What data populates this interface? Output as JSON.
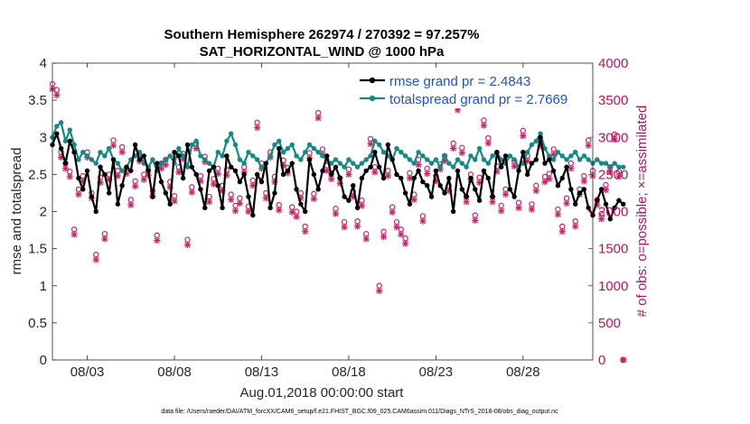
{
  "chart_data": {
    "type": "line",
    "title": "Southern Hemisphere 262974 / 270392 = 97.257%",
    "subtitle": "SAT_HORIZONTAL_WIND @ 1000 hPa",
    "xlabel": "Aug.01,2018 00:00:00 start",
    "ylabel_left": "rmse and totalspread",
    "ylabel_right": "# of obs: o=possible; ×=assimilated",
    "xlim": [
      1,
      32
    ],
    "ylim_left": [
      0,
      4
    ],
    "ylim_right": [
      0,
      4000
    ],
    "x_ticks": [
      3,
      8,
      13,
      18,
      23,
      28
    ],
    "x_tick_labels": [
      "08/03",
      "08/08",
      "08/13",
      "08/18",
      "08/23",
      "08/28"
    ],
    "y_ticks_left": [
      "0",
      "0.5",
      "1",
      "1.5",
      "2",
      "2.5",
      "3",
      "3.5",
      "4"
    ],
    "y_ticks_right": [
      "0",
      "500",
      "1000",
      "1500",
      "2000",
      "2500",
      "3000",
      "3500",
      "4000"
    ],
    "legend": [
      {
        "label": "rmse grand pr = 2.4843",
        "color": "#000000"
      },
      {
        "label": "totalspread grand pr = 2.7669",
        "color": "#138a86"
      }
    ],
    "footer": "data file: /Users/raeder/DAI/ATM_forcXX/CAM6_setup/f.e21.FHIST_BGC.f09_025.CAM6assim.011/Diags_NTrS_2018-08/obs_diag_output.nc",
    "colors": {
      "rmse": "#000000",
      "spread": "#138a86",
      "obs": "#cc1f65"
    },
    "series": {
      "rmse": [
        2.9,
        3.05,
        2.85,
        2.65,
        2.95,
        2.8,
        2.45,
        2.3,
        2.55,
        2.2,
        2.0,
        2.6,
        2.5,
        2.25,
        2.7,
        2.1,
        2.35,
        2.6,
        2.55,
        2.9,
        2.7,
        2.75,
        2.55,
        2.2,
        2.65,
        2.4,
        2.25,
        2.1,
        2.8,
        2.75,
        2.45,
        2.9,
        2.6,
        2.5,
        2.3,
        2.05,
        2.55,
        2.6,
        2.35,
        2.05,
        2.75,
        2.6,
        2.55,
        2.4,
        2.5,
        2.2,
        1.95,
        2.5,
        2.4,
        2.65,
        2.05,
        2.25,
        2.85,
        2.5,
        2.55,
        2.65,
        2.3,
        2.1,
        2.0,
        2.7,
        2.5,
        2.3,
        2.55,
        2.75,
        2.5,
        2.6,
        2.45,
        2.2,
        2.15,
        2.35,
        2.05,
        2.45,
        2.55,
        2.6,
        2.8,
        2.6,
        2.45,
        2.9,
        2.7,
        2.5,
        2.45,
        2.25,
        2.1,
        2.45,
        2.55,
        2.4,
        2.35,
        2.2,
        2.55,
        2.35,
        2.25,
        2.45,
        2.0,
        2.55,
        2.3,
        2.2,
        2.45,
        2.3,
        2.15,
        2.55,
        2.45,
        2.2,
        2.8,
        2.6,
        2.75,
        2.3,
        2.2,
        2.55,
        2.8,
        2.5,
        2.65,
        2.7,
        3.0,
        2.65,
        2.7,
        2.55,
        2.35,
        2.45,
        2.6,
        2.3,
        2.1,
        2.25,
        2.3,
        2.05,
        1.95,
        2.15,
        2.3,
        2.1,
        1.9,
        2.05,
        2.15,
        2.1
      ],
      "totalspread": [
        3.0,
        3.15,
        3.2,
        2.95,
        3.1,
        2.9,
        2.7,
        2.8,
        2.75,
        2.7,
        2.65,
        2.8,
        2.75,
        2.85,
        2.7,
        2.65,
        2.55,
        2.6,
        2.7,
        2.75,
        2.8,
        2.65,
        2.6,
        2.7,
        2.55,
        2.65,
        2.7,
        2.75,
        2.65,
        2.85,
        2.75,
        2.6,
        2.9,
        2.95,
        2.75,
        2.7,
        2.65,
        2.6,
        2.8,
        2.75,
        2.95,
        3.05,
        2.9,
        2.7,
        2.65,
        2.8,
        2.75,
        2.7,
        2.6,
        2.65,
        2.75,
        2.9,
        2.95,
        2.8,
        2.85,
        2.9,
        2.75,
        2.7,
        2.8,
        2.9,
        2.85,
        2.8,
        2.75,
        2.7,
        2.65,
        2.7,
        2.65,
        2.6,
        2.7,
        2.65,
        2.6,
        2.65,
        2.7,
        2.75,
        2.95,
        2.9,
        2.8,
        2.75,
        2.7,
        2.85,
        2.8,
        2.75,
        2.7,
        2.65,
        2.8,
        2.75,
        2.7,
        2.65,
        2.7,
        2.6,
        2.75,
        2.65,
        2.6,
        2.7,
        2.65,
        2.6,
        2.75,
        2.7,
        2.85,
        2.7,
        2.65,
        2.75,
        2.8,
        2.7,
        2.65,
        2.75,
        2.7,
        2.6,
        2.65,
        2.8,
        2.9,
        2.95,
        3.05,
        2.85,
        2.75,
        2.7,
        2.8,
        2.75,
        2.7,
        2.75,
        2.8,
        2.7,
        2.75,
        2.7,
        2.65,
        2.7,
        2.65,
        2.65,
        2.6,
        2.65,
        2.6,
        2.6
      ],
      "obs_possible": [
        3720,
        3640,
        2800,
        2650,
        2540,
        1760,
        2300,
        2480,
        2800,
        2250,
        1420,
        2460,
        1700,
        2500,
        2960,
        2550,
        2870,
        2580,
        2160,
        2410,
        2750,
        2500,
        2560,
        2280,
        1680,
        2650,
        2700,
        2400,
        2210,
        2600,
        2780,
        1620,
        2330,
        2920,
        2480,
        2740,
        2200,
        2440,
        2580,
        2350,
        2560,
        2230,
        2080,
        2180,
        2600,
        2070,
        2420,
        3200,
        2650,
        2250,
        2800,
        2470,
        2090,
        2690,
        2590,
        2060,
        2000,
        2250,
        1800,
        2790,
        2240,
        3330,
        2840,
        2620,
        2510,
        2040,
        2450,
        1860,
        2570,
        2270,
        1870,
        2150,
        1700,
        2980,
        2600,
        1000,
        1730,
        2550,
        2060,
        1860,
        1760,
        1640,
        2520,
        2230,
        2700,
        1940,
        2580,
        3630,
        2480,
        2640,
        2750,
        2350,
        2920,
        3440,
        2860,
        2200,
        2500,
        1950,
        2460,
        3230,
        2990,
        2200,
        2610,
        2080,
        2300,
        3510,
        2680,
        2120,
        3090,
        2750,
        2100,
        2350,
        2950,
        2470,
        2510,
        2840,
        2030,
        1800,
        2180,
        2650,
        1870,
        2300,
        2480,
        2960,
        2550,
        2160,
        1970,
        2360,
        2600,
        3040,
        2540,
        0
      ]
    }
  }
}
